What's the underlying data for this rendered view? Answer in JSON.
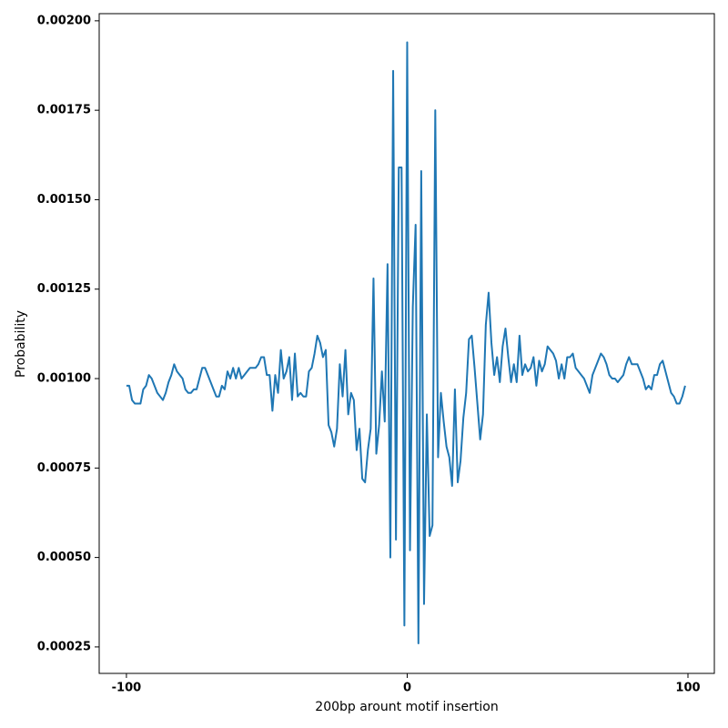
{
  "chart_data": {
    "type": "line",
    "xlabel": "200bp arount motif insertion",
    "ylabel": "Probability",
    "x": [
      -100,
      -99,
      -98,
      -97,
      -96,
      -95,
      -94,
      -93,
      -92,
      -91,
      -90,
      -89,
      -88,
      -87,
      -86,
      -85,
      -84,
      -83,
      -82,
      -81,
      -80,
      -79,
      -78,
      -77,
      -76,
      -75,
      -74,
      -73,
      -72,
      -71,
      -70,
      -69,
      -68,
      -67,
      -66,
      -65,
      -64,
      -63,
      -62,
      -61,
      -60,
      -59,
      -58,
      -57,
      -56,
      -55,
      -54,
      -53,
      -52,
      -51,
      -50,
      -49,
      -48,
      -47,
      -46,
      -45,
      -44,
      -43,
      -42,
      -41,
      -40,
      -39,
      -38,
      -37,
      -36,
      -35,
      -34,
      -33,
      -32,
      -31,
      -30,
      -29,
      -28,
      -27,
      -26,
      -25,
      -24,
      -23,
      -22,
      -21,
      -20,
      -19,
      -18,
      -17,
      -16,
      -15,
      -14,
      -13,
      -12,
      -11,
      -10,
      -9,
      -8,
      -7,
      -6,
      -5,
      -4,
      -3,
      -2,
      -1,
      0,
      1,
      2,
      3,
      4,
      5,
      6,
      7,
      8,
      9,
      10,
      11,
      12,
      13,
      14,
      15,
      16,
      17,
      18,
      19,
      20,
      21,
      22,
      23,
      24,
      25,
      26,
      27,
      28,
      29,
      30,
      31,
      32,
      33,
      34,
      35,
      36,
      37,
      38,
      39,
      40,
      41,
      42,
      43,
      44,
      45,
      46,
      47,
      48,
      49,
      50,
      51,
      52,
      53,
      54,
      55,
      56,
      57,
      58,
      59,
      60,
      61,
      62,
      63,
      64,
      65,
      66,
      67,
      68,
      69,
      70,
      71,
      72,
      73,
      74,
      75,
      76,
      77,
      78,
      79,
      80,
      81,
      82,
      83,
      84,
      85,
      86,
      87,
      88,
      89,
      90,
      91,
      92,
      93,
      94,
      95,
      96,
      97,
      98,
      99
    ],
    "series": [
      {
        "color": "#1f77b4",
        "values": [
          0.00098,
          0.00098,
          0.00094,
          0.00093,
          0.00093,
          0.00093,
          0.00097,
          0.00098,
          0.00101,
          0.001,
          0.00098,
          0.00096,
          0.00095,
          0.00094,
          0.00096,
          0.00099,
          0.00101,
          0.00104,
          0.00102,
          0.00101,
          0.001,
          0.00097,
          0.00096,
          0.00096,
          0.00097,
          0.00097,
          0.001,
          0.00103,
          0.00103,
          0.00101,
          0.00099,
          0.00097,
          0.00095,
          0.00095,
          0.00098,
          0.00097,
          0.00102,
          0.001,
          0.00103,
          0.001,
          0.00103,
          0.001,
          0.00101,
          0.00102,
          0.00103,
          0.00103,
          0.00103,
          0.00104,
          0.00106,
          0.00106,
          0.00101,
          0.00101,
          0.00091,
          0.00101,
          0.00096,
          0.00108,
          0.001,
          0.00102,
          0.00106,
          0.00094,
          0.00107,
          0.00095,
          0.00096,
          0.00095,
          0.00095,
          0.00102,
          0.00103,
          0.00107,
          0.00112,
          0.0011,
          0.00106,
          0.00108,
          0.00087,
          0.00085,
          0.00081,
          0.00086,
          0.00104,
          0.00095,
          0.00108,
          0.0009,
          0.00096,
          0.00094,
          0.0008,
          0.00086,
          0.00072,
          0.00071,
          0.0008,
          0.00086,
          0.00128,
          0.00079,
          0.00087,
          0.00102,
          0.00088,
          0.00132,
          0.0005,
          0.00186,
          0.00055,
          0.00159,
          0.00159,
          0.00031,
          0.00194,
          0.00052,
          0.0012,
          0.00143,
          0.00026,
          0.00158,
          0.00037,
          0.0009,
          0.00056,
          0.00059,
          0.00175,
          0.00078,
          0.00096,
          0.00088,
          0.00081,
          0.00078,
          0.0007,
          0.00097,
          0.00071,
          0.00077,
          0.00089,
          0.00096,
          0.00111,
          0.00112,
          0.00103,
          0.00093,
          0.00083,
          0.0009,
          0.00115,
          0.00124,
          0.0011,
          0.00101,
          0.00106,
          0.00099,
          0.00109,
          0.00114,
          0.00106,
          0.00099,
          0.00104,
          0.00099,
          0.00112,
          0.00101,
          0.00104,
          0.00102,
          0.00103,
          0.00106,
          0.00098,
          0.00105,
          0.00102,
          0.00104,
          0.00109,
          0.00108,
          0.00107,
          0.00105,
          0.001,
          0.00104,
          0.001,
          0.00106,
          0.00106,
          0.00107,
          0.00103,
          0.00102,
          0.00101,
          0.001,
          0.00098,
          0.00096,
          0.00101,
          0.00103,
          0.00105,
          0.00107,
          0.00106,
          0.00104,
          0.00101,
          0.001,
          0.001,
          0.00099,
          0.001,
          0.00101,
          0.00104,
          0.00106,
          0.00104,
          0.00104,
          0.00104,
          0.00102,
          0.001,
          0.00097,
          0.00098,
          0.00097,
          0.00101,
          0.00101,
          0.00104,
          0.00105,
          0.00102,
          0.00099,
          0.00096,
          0.00095,
          0.00093,
          0.00093,
          0.00095,
          0.00098
        ]
      }
    ],
    "xlim": [
      -109.7,
      109.4
    ],
    "ylim": [
      0.000176,
      0.00202
    ],
    "xticks": [
      -100,
      0,
      100
    ],
    "yticks": [
      0.00025,
      {
        "value": 0.0005,
        "label": "0.00050"
      },
      0.00075,
      {
        "value": 0.001,
        "label": "0.00100"
      },
      0.00125,
      {
        "value": 0.0015,
        "label": "0.00150"
      },
      0.00175,
      {
        "value": 0.002,
        "label": "0.00200"
      }
    ]
  }
}
